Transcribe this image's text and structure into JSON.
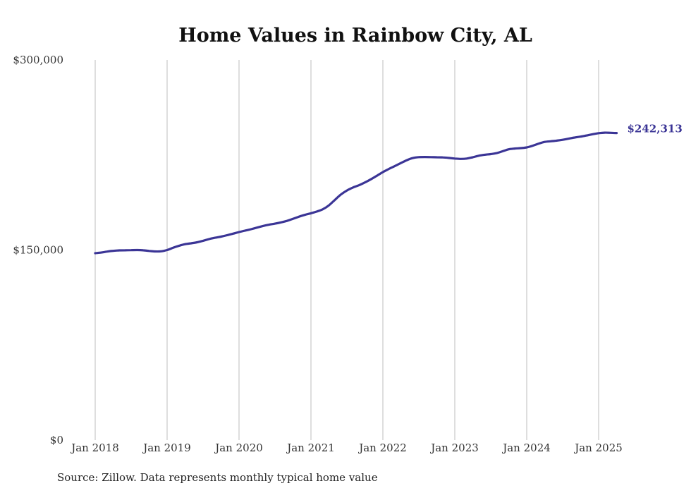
{
  "chart_data": {
    "type": "line",
    "title": "Home Values in Rainbow City, AL",
    "xlabel": "",
    "ylabel": "",
    "ylim": [
      0,
      300000
    ],
    "xlim": [
      "2018-01",
      "2025-04"
    ],
    "grid": "vertical",
    "legend": "none",
    "y_ticks": [
      "$0",
      "$150,000",
      "$300,000"
    ],
    "x_ticks": [
      "Jan 2018",
      "Jan 2019",
      "Jan 2020",
      "Jan 2021",
      "Jan 2022",
      "Jan 2023",
      "Jan 2024",
      "Jan 2025"
    ],
    "series": [
      {
        "color": "#3b3596",
        "points": [
          [
            "2018-01",
            147500
          ],
          [
            "2018-02",
            148000
          ],
          [
            "2018-03",
            148800
          ],
          [
            "2018-04",
            149400
          ],
          [
            "2018-05",
            149700
          ],
          [
            "2018-06",
            149800
          ],
          [
            "2018-07",
            149900
          ],
          [
            "2018-08",
            150000
          ],
          [
            "2018-09",
            149800
          ],
          [
            "2018-10",
            149300
          ],
          [
            "2018-11",
            148900
          ],
          [
            "2018-12",
            149000
          ],
          [
            "2019-01",
            150000
          ],
          [
            "2019-02",
            151800
          ],
          [
            "2019-03",
            153400
          ],
          [
            "2019-04",
            154600
          ],
          [
            "2019-05",
            155300
          ],
          [
            "2019-06",
            156100
          ],
          [
            "2019-07",
            157300
          ],
          [
            "2019-08",
            158600
          ],
          [
            "2019-09",
            159700
          ],
          [
            "2019-10",
            160600
          ],
          [
            "2019-11",
            161700
          ],
          [
            "2019-12",
            162900
          ],
          [
            "2020-01",
            164200
          ],
          [
            "2020-02",
            165300
          ],
          [
            "2020-03",
            166400
          ],
          [
            "2020-04",
            167700
          ],
          [
            "2020-05",
            169000
          ],
          [
            "2020-06",
            170000
          ],
          [
            "2020-07",
            170800
          ],
          [
            "2020-08",
            171800
          ],
          [
            "2020-09",
            173000
          ],
          [
            "2020-10",
            174600
          ],
          [
            "2020-11",
            176300
          ],
          [
            "2020-12",
            177800
          ],
          [
            "2021-01",
            179000
          ],
          [
            "2021-02",
            180400
          ],
          [
            "2021-03",
            182200
          ],
          [
            "2021-04",
            185300
          ],
          [
            "2021-05",
            189600
          ],
          [
            "2021-06",
            193800
          ],
          [
            "2021-07",
            197000
          ],
          [
            "2021-08",
            199300
          ],
          [
            "2021-09",
            201100
          ],
          [
            "2021-10",
            203300
          ],
          [
            "2021-11",
            205800
          ],
          [
            "2021-12",
            208600
          ],
          [
            "2022-01",
            211500
          ],
          [
            "2022-02",
            214000
          ],
          [
            "2022-03",
            216300
          ],
          [
            "2022-04",
            218600
          ],
          [
            "2022-05",
            220900
          ],
          [
            "2022-06",
            222600
          ],
          [
            "2022-07",
            223300
          ],
          [
            "2022-08",
            223400
          ],
          [
            "2022-09",
            223300
          ],
          [
            "2022-10",
            223200
          ],
          [
            "2022-11",
            223100
          ],
          [
            "2022-12",
            222700
          ],
          [
            "2023-01",
            222200
          ],
          [
            "2023-02",
            221900
          ],
          [
            "2023-03",
            222200
          ],
          [
            "2023-04",
            223200
          ],
          [
            "2023-05",
            224400
          ],
          [
            "2023-06",
            225200
          ],
          [
            "2023-07",
            225700
          ],
          [
            "2023-08",
            226500
          ],
          [
            "2023-09",
            228000
          ],
          [
            "2023-10",
            229500
          ],
          [
            "2023-11",
            230100
          ],
          [
            "2023-12",
            230400
          ],
          [
            "2024-01",
            231000
          ],
          [
            "2024-02",
            232300
          ],
          [
            "2024-03",
            234000
          ],
          [
            "2024-04",
            235300
          ],
          [
            "2024-05",
            235800
          ],
          [
            "2024-06",
            236300
          ],
          [
            "2024-07",
            237000
          ],
          [
            "2024-08",
            237900
          ],
          [
            "2024-09",
            238800
          ],
          [
            "2024-10",
            239500
          ],
          [
            "2024-11",
            240400
          ],
          [
            "2024-12",
            241400
          ],
          [
            "2025-01",
            242200
          ],
          [
            "2025-02",
            242600
          ],
          [
            "2025-03",
            242500
          ],
          [
            "2025-04",
            242313
          ]
        ],
        "end_label": "$242,313"
      }
    ]
  },
  "source_note": "Source: Zillow. Data represents monthly typical home value"
}
